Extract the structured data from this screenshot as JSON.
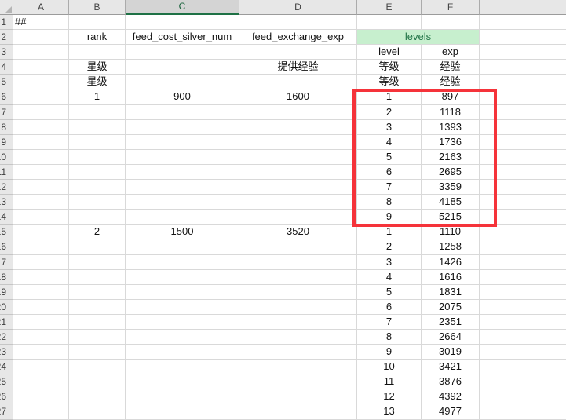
{
  "column_headers": [
    "A",
    "B",
    "C",
    "D",
    "E",
    "F"
  ],
  "selected_column": "C",
  "merged_cell": {
    "row": 2,
    "span": "E:F",
    "label": "levels"
  },
  "rows": [
    [
      "##",
      "",
      "",
      "",
      "",
      ""
    ],
    [
      "",
      "rank",
      "feed_cost_silver_num",
      "feed_exchange_exp",
      "",
      ""
    ],
    [
      "",
      "",
      "",
      "",
      "level",
      "exp"
    ],
    [
      "",
      "星级",
      "",
      "提供经验",
      "等级",
      "经验"
    ],
    [
      "",
      "星级",
      "",
      "",
      "等级",
      "经验"
    ],
    [
      "",
      "1",
      "900",
      "1600",
      "1",
      "897"
    ],
    [
      "",
      "",
      "",
      "",
      "2",
      "1118"
    ],
    [
      "",
      "",
      "",
      "",
      "3",
      "1393"
    ],
    [
      "",
      "",
      "",
      "",
      "4",
      "1736"
    ],
    [
      "",
      "",
      "",
      "",
      "5",
      "2163"
    ],
    [
      "",
      "",
      "",
      "",
      "6",
      "2695"
    ],
    [
      "",
      "",
      "",
      "",
      "7",
      "3359"
    ],
    [
      "",
      "",
      "",
      "",
      "8",
      "4185"
    ],
    [
      "",
      "",
      "",
      "",
      "9",
      "5215"
    ],
    [
      "",
      "2",
      "1500",
      "3520",
      "1",
      "1110"
    ],
    [
      "",
      "",
      "",
      "",
      "2",
      "1258"
    ],
    [
      "",
      "",
      "",
      "",
      "3",
      "1426"
    ],
    [
      "",
      "",
      "",
      "",
      "4",
      "1616"
    ],
    [
      "",
      "",
      "",
      "",
      "5",
      "1831"
    ],
    [
      "",
      "",
      "",
      "",
      "6",
      "2075"
    ],
    [
      "",
      "",
      "",
      "",
      "7",
      "2351"
    ],
    [
      "",
      "",
      "",
      "",
      "8",
      "2664"
    ],
    [
      "",
      "",
      "",
      "",
      "9",
      "3019"
    ],
    [
      "",
      "",
      "",
      "",
      "10",
      "3421"
    ],
    [
      "",
      "",
      "",
      "",
      "11",
      "3876"
    ],
    [
      "",
      "",
      "",
      "",
      "12",
      "4392"
    ],
    [
      "",
      "",
      "",
      "",
      "13",
      "4977"
    ]
  ],
  "annotation": {
    "red_box_color": "#f5333a"
  },
  "colors": {
    "header_bg": "#e7e7e7",
    "selected_header_bg": "#d4d4d4",
    "selected_header_green": "#1e7145",
    "grid_line": "#d9d9d9",
    "levels_fill": "#c7efce",
    "levels_text": "#217346"
  }
}
